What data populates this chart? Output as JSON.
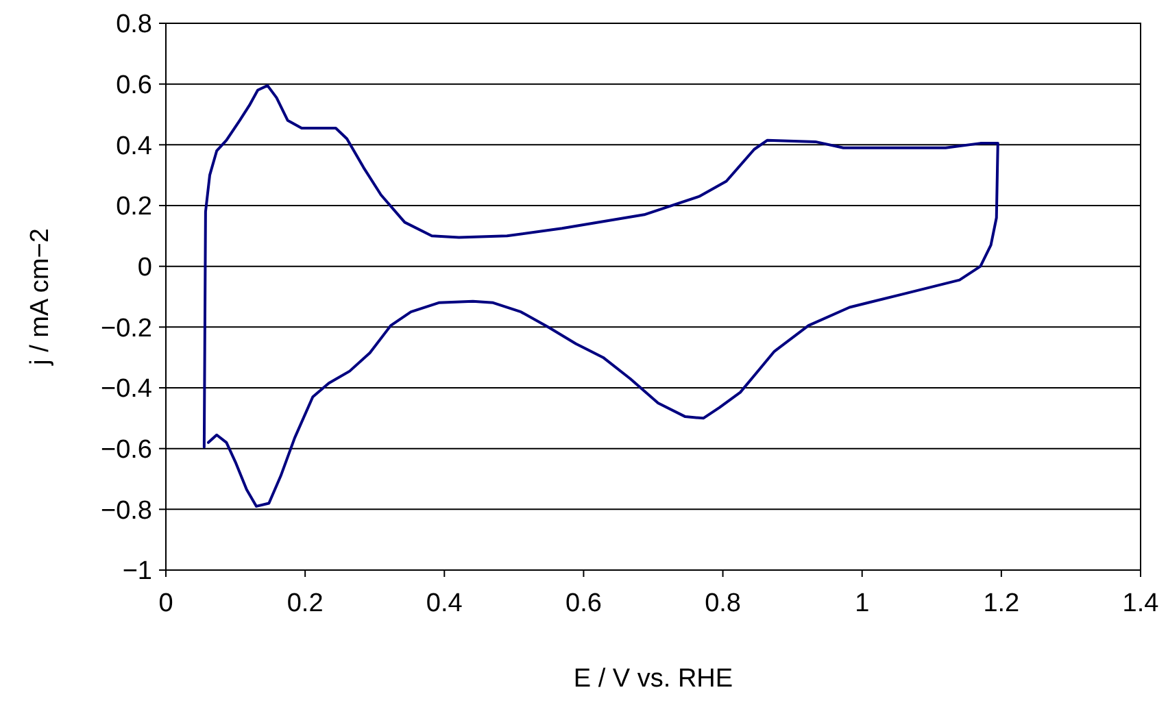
{
  "chart_data": {
    "type": "line",
    "xlabel": "E / V vs. RHE",
    "ylabel": "j / mA cm−2",
    "xlim": [
      0,
      1.4
    ],
    "xticks": [
      0,
      0.2,
      0.4,
      0.6,
      0.8,
      1,
      1.2,
      1.4
    ],
    "ylim": [
      -1,
      0.8
    ],
    "yticks": [
      -1,
      -0.8,
      -0.6,
      -0.4,
      -0.2,
      0,
      0.2,
      0.4,
      0.6,
      0.8
    ],
    "grid": "y",
    "marker": "none",
    "line_style": "solid",
    "series": [
      {
        "color": "#000080",
        "x": [
          0.055,
          0.057,
          0.063,
          0.073,
          0.087,
          0.106,
          0.12,
          0.132,
          0.146,
          0.159,
          0.175,
          0.195,
          0.244,
          0.26,
          0.284,
          0.309,
          0.343,
          0.382,
          0.421,
          0.49,
          0.569,
          0.687,
          0.766,
          0.805,
          0.845,
          0.864,
          0.933,
          0.973,
          1.12,
          1.17,
          1.195,
          1.193,
          1.185,
          1.17,
          1.14,
          1.061,
          0.982,
          0.923,
          0.874,
          0.845,
          0.825,
          0.795,
          0.772,
          0.746,
          0.707,
          0.667,
          0.628,
          0.589,
          0.549,
          0.51,
          0.47,
          0.441,
          0.392,
          0.352,
          0.323,
          0.293,
          0.264,
          0.234,
          0.211,
          0.185,
          0.165,
          0.148,
          0.13,
          0.116,
          0.1,
          0.087,
          0.073,
          0.061
        ],
        "values": [
          -0.595,
          0.18,
          0.3,
          0.38,
          0.415,
          0.48,
          0.53,
          0.58,
          0.595,
          0.555,
          0.48,
          0.455,
          0.455,
          0.42,
          0.325,
          0.235,
          0.145,
          0.1,
          0.095,
          0.1,
          0.125,
          0.17,
          0.23,
          0.28,
          0.385,
          0.415,
          0.41,
          0.39,
          0.39,
          0.405,
          0.405,
          0.16,
          0.07,
          0,
          -0.045,
          -0.09,
          -0.135,
          -0.195,
          -0.28,
          -0.36,
          -0.415,
          -0.465,
          -0.5,
          -0.495,
          -0.45,
          -0.37,
          -0.3,
          -0.255,
          -0.2,
          -0.15,
          -0.12,
          -0.115,
          -0.12,
          -0.15,
          -0.195,
          -0.285,
          -0.345,
          -0.385,
          -0.43,
          -0.565,
          -0.69,
          -0.78,
          -0.79,
          -0.735,
          -0.645,
          -0.58,
          -0.555,
          -0.58
        ]
      }
    ]
  }
}
